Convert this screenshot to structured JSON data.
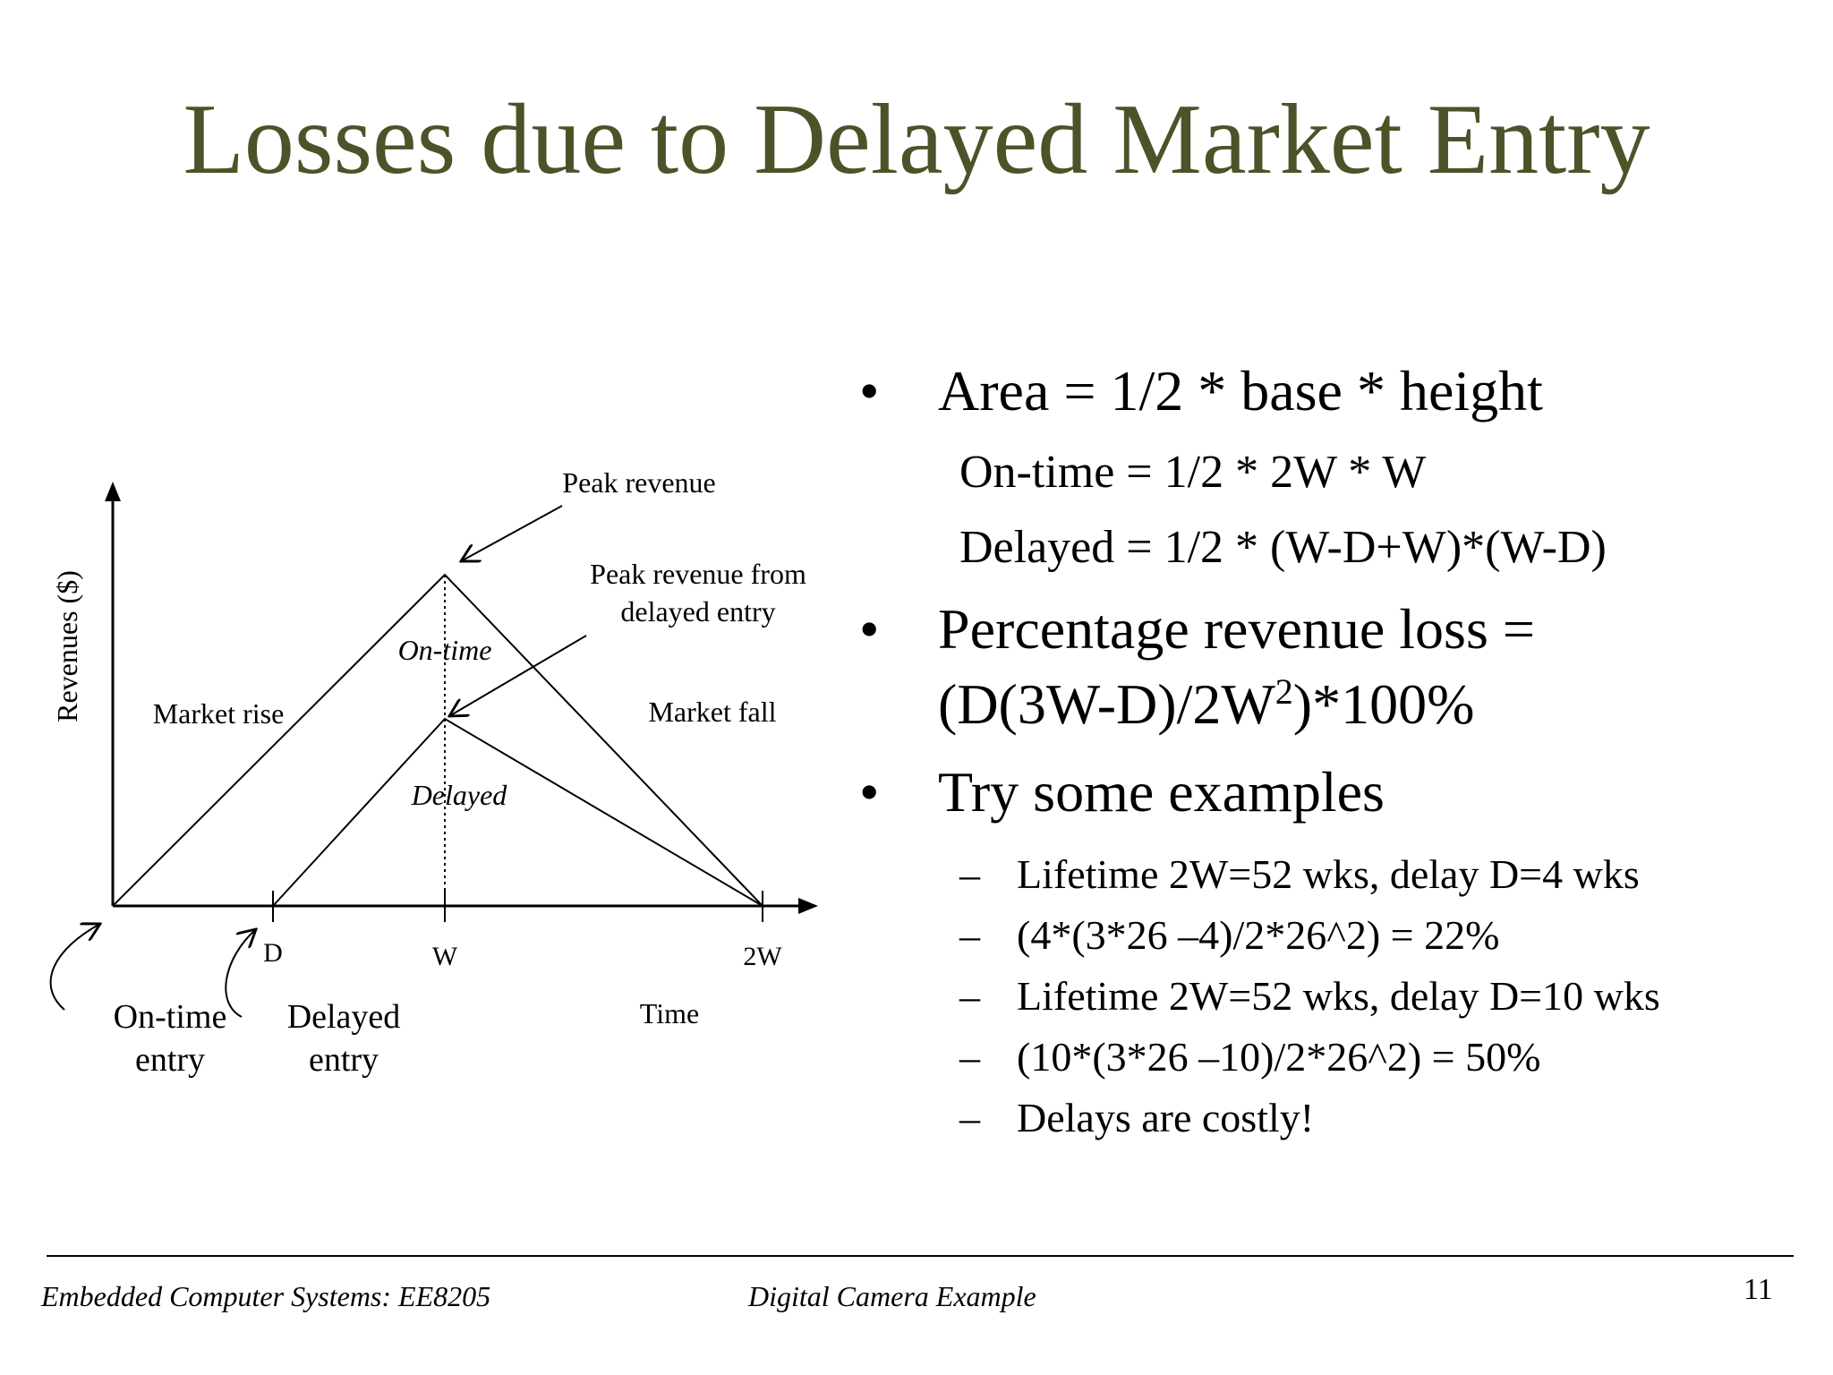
{
  "title": "Losses due to Delayed Market Entry",
  "diagram": {
    "y_axis_label": "Revenues ($)",
    "x_axis_label": "Time",
    "peak_revenue": "Peak revenue",
    "peak_delayed_line1": "Peak revenue from",
    "peak_delayed_line2": "delayed entry",
    "market_rise": "Market rise",
    "market_fall": "Market fall",
    "on_time_region": "On-time",
    "delayed_region": "Delayed",
    "tick_d": "D",
    "tick_w": "W",
    "tick_2w": "2W",
    "on_time_entry_line1": "On-time",
    "on_time_entry_line2": "entry",
    "delayed_entry_line1": "Delayed",
    "delayed_entry_line2": "entry"
  },
  "bullets": {
    "area": "Area = 1/2 * base * height",
    "on_time_formula": "On-time = 1/2 * 2W * W",
    "delayed_formula": "Delayed = 1/2 * (W-D+W)*(W-D)",
    "pct_loss_line1": "Percentage revenue loss =",
    "pct_loss_a": "(D(3W-D)/2W",
    "pct_loss_sup": "2",
    "pct_loss_b": ")*100%",
    "try": "Try some examples",
    "examples": [
      "Lifetime 2W=52 wks, delay D=4 wks",
      "(4*(3*26 –4)/2*26^2) = 22%",
      "Lifetime 2W=52 wks, delay D=10 wks",
      "(10*(3*26 –10)/2*26^2) = 50%",
      "Delays are costly!"
    ],
    "bullet_glyph": "•",
    "dash_glyph": "–"
  },
  "footer": {
    "course": "Embedded Computer Systems: EE8205",
    "topic": "Digital Camera Example",
    "page": "11"
  }
}
